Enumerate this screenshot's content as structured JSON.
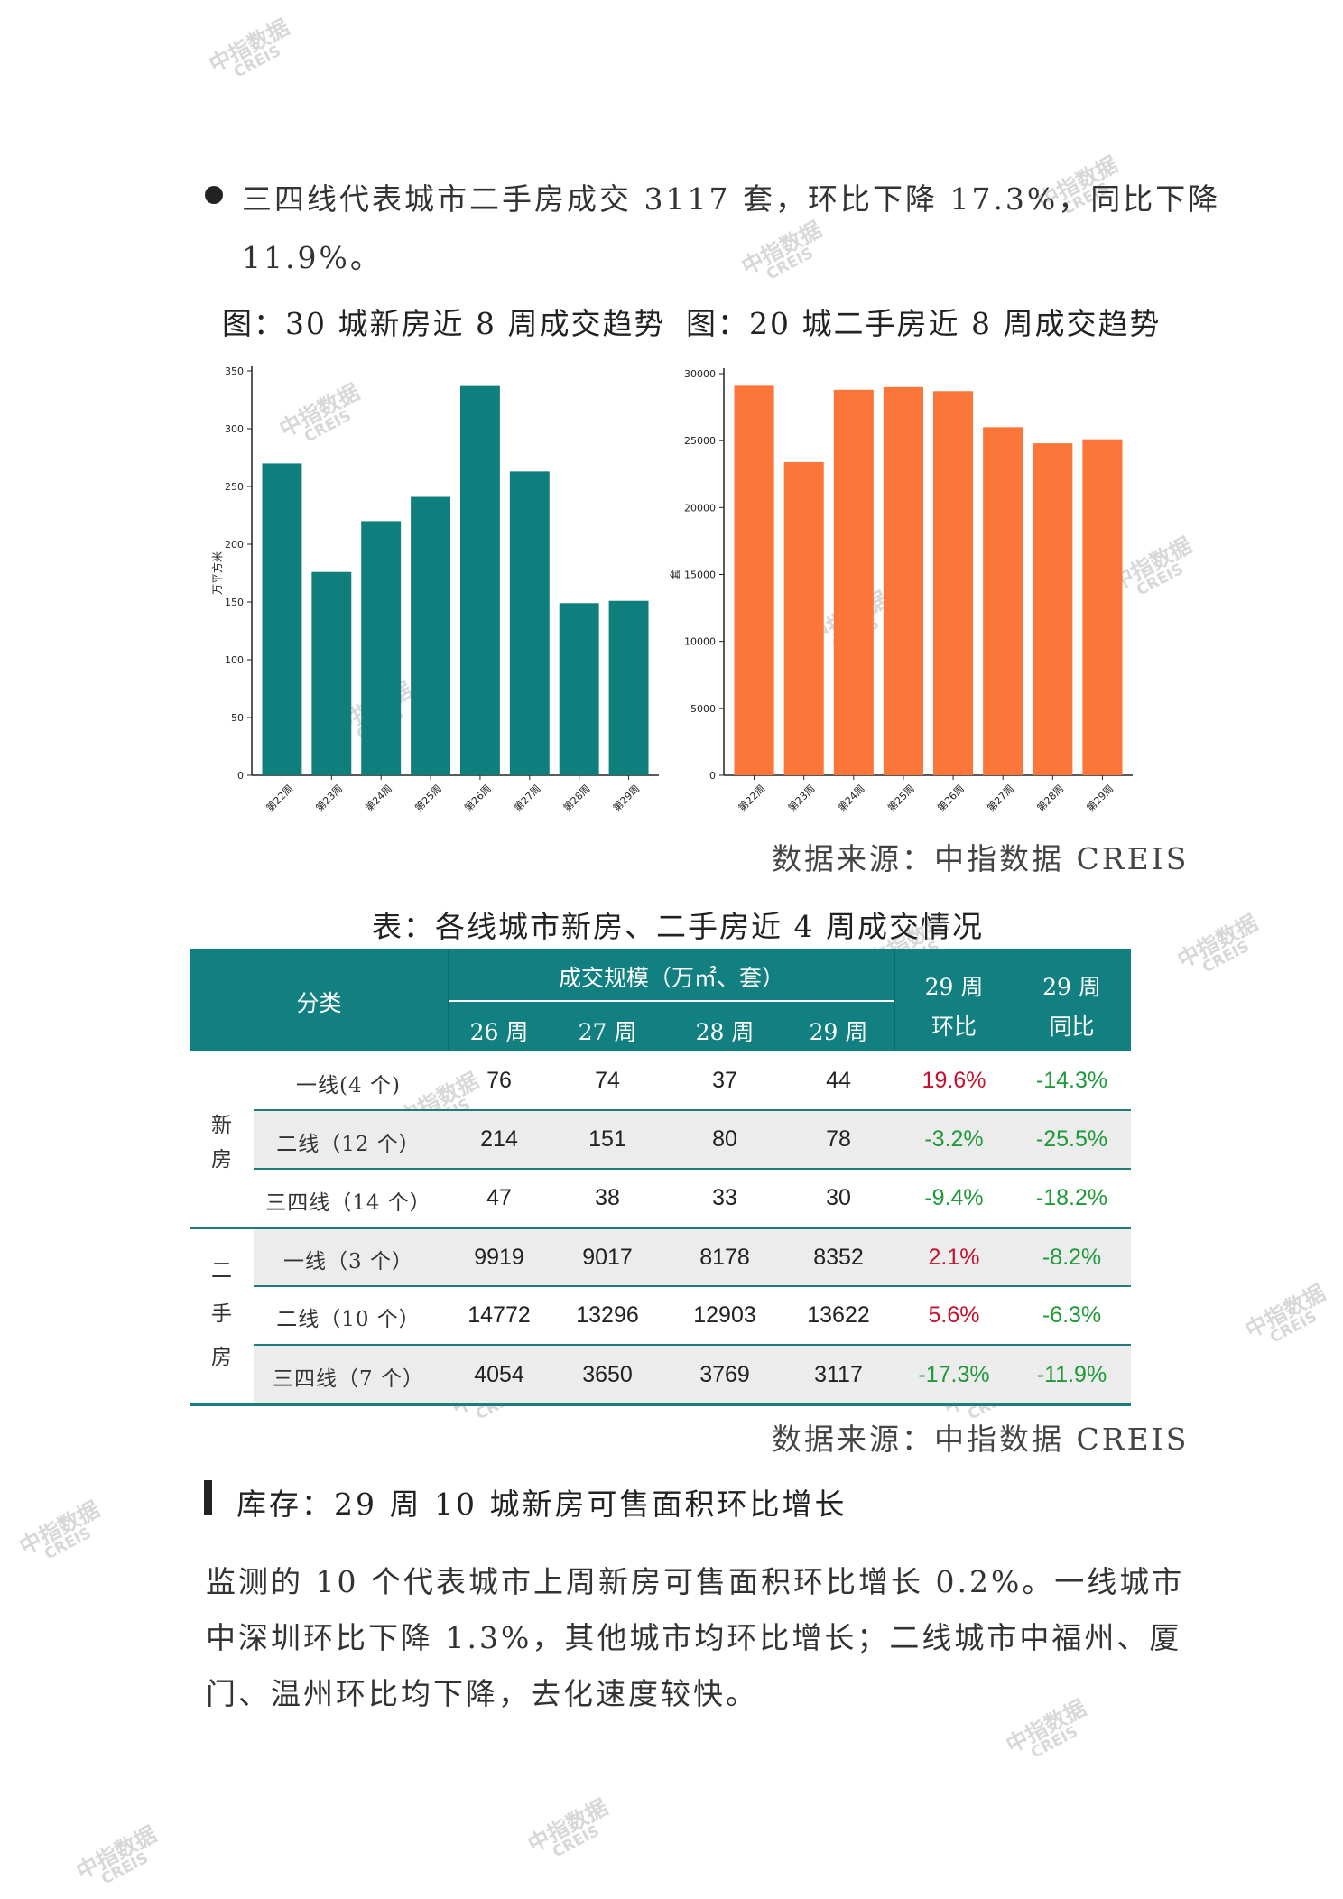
{
  "intro": {
    "line1": "三四线代表城市二手房成交 3117 套，环比下降 17.3%，同比下降",
    "line2": "11.9%。"
  },
  "captions": {
    "left": "图：30 城新房近 8 周成交趋势",
    "right": "图：20 城二手房近 8 周成交趋势"
  },
  "chart_data": [
    {
      "type": "bar",
      "categories": [
        "第22周",
        "第23周",
        "第24周",
        "第25周",
        "第26周",
        "第27周",
        "第28周",
        "第29周"
      ],
      "values": [
        270,
        176,
        220,
        241,
        337,
        263,
        149,
        151
      ],
      "ylabel": "万平方米",
      "ylim": [
        0,
        350
      ],
      "yticks": [
        0,
        50,
        100,
        150,
        200,
        250,
        300,
        350
      ],
      "color": "#0f7f7d"
    },
    {
      "type": "bar",
      "categories": [
        "第22周",
        "第23周",
        "第24周",
        "第25周",
        "第26周",
        "第27周",
        "第28周",
        "第29周"
      ],
      "values": [
        29100,
        23400,
        28800,
        29000,
        28700,
        26000,
        24800,
        25100
      ],
      "ylabel": "套",
      "ylim": [
        0,
        30000
      ],
      "yticks": [
        0,
        5000,
        10000,
        15000,
        20000,
        25000,
        30000
      ],
      "color": "#fb7638"
    }
  ],
  "source1": "数据来源：中指数据 CREIS",
  "table": {
    "title": "表：各线城市新房、二手房近 4 周成交情况",
    "header": {
      "category": "分类",
      "scale": "成交规模（万㎡、套）",
      "weeks": [
        "26 周",
        "27 周",
        "28 周",
        "29 周"
      ],
      "mom": [
        "29 周",
        "环比"
      ],
      "yoy": [
        "29 周",
        "同比"
      ]
    },
    "new_label": [
      "新",
      "房"
    ],
    "second_label": [
      "二",
      "手",
      "房"
    ],
    "new_rows": [
      {
        "name": "一线(4 个)",
        "values": [
          "76",
          "74",
          "37",
          "44"
        ],
        "mom": "19.6%",
        "yoy": "-14.3%"
      },
      {
        "name": "二线（12 个）",
        "values": [
          "214",
          "151",
          "80",
          "78"
        ],
        "mom": "-3.2%",
        "yoy": "-25.5%"
      },
      {
        "name": "三四线（14 个）",
        "values": [
          "47",
          "38",
          "33",
          "30"
        ],
        "mom": "-9.4%",
        "yoy": "-18.2%"
      }
    ],
    "second_rows": [
      {
        "name": "一线（3 个）",
        "values": [
          "9919",
          "9017",
          "8178",
          "8352"
        ],
        "mom": "2.1%",
        "yoy": "-8.2%"
      },
      {
        "name": "二线（10 个）",
        "values": [
          "14772",
          "13296",
          "12903",
          "13622"
        ],
        "mom": "5.6%",
        "yoy": "-6.3%"
      },
      {
        "name": "三四线（7 个）",
        "values": [
          "4054",
          "3650",
          "3769",
          "3117"
        ],
        "mom": "-17.3%",
        "yoy": "-11.9%"
      }
    ]
  },
  "source2": "数据来源：中指数据 CREIS",
  "section": {
    "heading": "库存：29 周 10 城新房可售面积环比增长",
    "body": [
      "监测的 10 个代表城市上周新房可售面积环比增长 0.2%。一线城市",
      "中深圳环比下降 1.3%，其他城市均环比增长；二线城市中福州、厦",
      "门、温州环比均下降，去化速度较快。"
    ]
  },
  "watermark": {
    "line1": "中指数据",
    "line2": "CREIS"
  },
  "colors": {
    "teal": "#128080",
    "orange": "#fb7638",
    "red": "#c8102e",
    "green": "#1f9a3a"
  }
}
